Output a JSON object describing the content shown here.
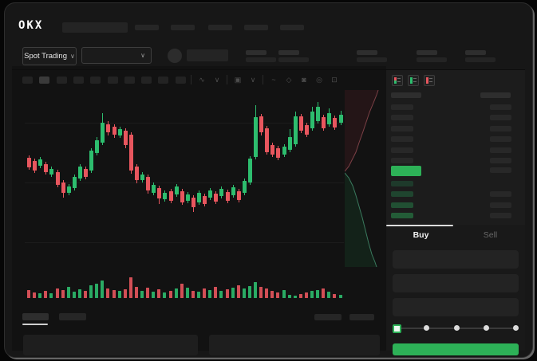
{
  "topbar": {
    "logo": "OKX",
    "logo_placeholder": {
      "x": 72,
      "w": 82
    },
    "nav_placeholders": [
      163,
      208,
      255,
      300,
      345
    ]
  },
  "subheader": {
    "market_selector_label": "Spot Trading",
    "chevron": "∨",
    "stat_groups": [
      302,
      343,
      441,
      516,
      577
    ]
  },
  "toolbar": {
    "timeframe_placeholder_count": 10,
    "active_timeframe_index": 1,
    "icons": [
      {
        "type": "sep"
      },
      {
        "type": "icon",
        "name": "indicator-zigzag-icon",
        "glyph": "∿"
      },
      {
        "type": "icon",
        "name": "chevron-down-icon",
        "glyph": "∨"
      },
      {
        "type": "sep"
      },
      {
        "type": "icon",
        "name": "layout-icon",
        "glyph": "▣"
      },
      {
        "type": "icon",
        "name": "chevron-down-icon",
        "glyph": "∨"
      },
      {
        "type": "sep"
      },
      {
        "type": "icon",
        "name": "line-tool-icon",
        "glyph": "~"
      },
      {
        "type": "icon",
        "name": "tag-icon",
        "glyph": "◇"
      },
      {
        "type": "icon",
        "name": "camera-icon",
        "glyph": "◙"
      },
      {
        "type": "icon",
        "name": "settings-icon",
        "glyph": "◎"
      },
      {
        "type": "icon",
        "name": "fullscreen-icon",
        "glyph": "⊡"
      }
    ]
  },
  "colors": {
    "up": "#2dbd6e",
    "down": "#e8565e",
    "accent_green": "#2db157",
    "ask_depth_line": "#7c4046",
    "ask_depth_fill": "#241517",
    "bid_depth_line": "#3a7a5e",
    "bid_depth_fill": "#132219"
  },
  "chart_data": {
    "type": "candlestick",
    "title": "",
    "xlabel": "",
    "ylabel": "",
    "axes_labeled": false,
    "note": "Skeleton trading chart with no visible axis labels; candle geometry in px from chart top (lower value = higher price): [bodyTop, bodyBottom, wickTop, wickBottom, direction]",
    "candles": [
      [
        86,
        98,
        83,
        101,
        "r"
      ],
      [
        90,
        102,
        87,
        105,
        "r"
      ],
      [
        88,
        96,
        85,
        99,
        "g"
      ],
      [
        94,
        104,
        91,
        107,
        "r"
      ],
      [
        100,
        107,
        97,
        110,
        "g"
      ],
      [
        104,
        120,
        101,
        123,
        "r"
      ],
      [
        117,
        130,
        114,
        136,
        "r"
      ],
      [
        122,
        130,
        119,
        133,
        "g"
      ],
      [
        110,
        124,
        107,
        127,
        "g"
      ],
      [
        97,
        112,
        94,
        115,
        "g"
      ],
      [
        100,
        110,
        97,
        113,
        "r"
      ],
      [
        77,
        102,
        74,
        105,
        "g"
      ],
      [
        64,
        80,
        60,
        83,
        "g"
      ],
      [
        42,
        67,
        30,
        70,
        "g"
      ],
      [
        44,
        54,
        40,
        58,
        "r"
      ],
      [
        47,
        57,
        44,
        61,
        "r"
      ],
      [
        50,
        58,
        47,
        61,
        "g"
      ],
      [
        52,
        70,
        49,
        74,
        "r"
      ],
      [
        57,
        102,
        54,
        106,
        "r"
      ],
      [
        97,
        114,
        94,
        118,
        "r"
      ],
      [
        107,
        114,
        104,
        117,
        "g"
      ],
      [
        110,
        127,
        107,
        131,
        "r"
      ],
      [
        120,
        130,
        117,
        133,
        "g"
      ],
      [
        124,
        137,
        121,
        144,
        "r"
      ],
      [
        130,
        138,
        127,
        141,
        "g"
      ],
      [
        128,
        140,
        125,
        143,
        "r"
      ],
      [
        122,
        132,
        119,
        135,
        "g"
      ],
      [
        128,
        142,
        125,
        145,
        "r"
      ],
      [
        132,
        140,
        129,
        143,
        "g"
      ],
      [
        136,
        148,
        133,
        154,
        "r"
      ],
      [
        130,
        142,
        127,
        145,
        "g"
      ],
      [
        134,
        144,
        131,
        147,
        "r"
      ],
      [
        127,
        136,
        124,
        139,
        "g"
      ],
      [
        131,
        141,
        128,
        144,
        "r"
      ],
      [
        125,
        134,
        122,
        137,
        "g"
      ],
      [
        129,
        140,
        126,
        143,
        "r"
      ],
      [
        123,
        133,
        120,
        136,
        "g"
      ],
      [
        128,
        139,
        125,
        142,
        "r"
      ],
      [
        115,
        130,
        112,
        133,
        "g"
      ],
      [
        87,
        117,
        84,
        120,
        "g"
      ],
      [
        35,
        85,
        20,
        88,
        "g"
      ],
      [
        34,
        54,
        31,
        58,
        "r"
      ],
      [
        49,
        79,
        46,
        82,
        "r"
      ],
      [
        70,
        82,
        67,
        85,
        "r"
      ],
      [
        74,
        86,
        71,
        89,
        "r"
      ],
      [
        72,
        82,
        69,
        85,
        "g"
      ],
      [
        60,
        76,
        50,
        79,
        "g"
      ],
      [
        34,
        69,
        28,
        72,
        "g"
      ],
      [
        34,
        52,
        31,
        55,
        "r"
      ],
      [
        45,
        57,
        42,
        60,
        "r"
      ],
      [
        28,
        49,
        22,
        52,
        "g"
      ],
      [
        22,
        40,
        16,
        43,
        "g"
      ],
      [
        35,
        49,
        32,
        52,
        "r"
      ],
      [
        30,
        44,
        24,
        47,
        "g"
      ],
      [
        36,
        48,
        33,
        51,
        "r"
      ],
      [
        32,
        42,
        27,
        45,
        "g"
      ]
    ],
    "volume_heights": [
      10,
      7,
      6,
      9,
      6,
      12,
      10,
      14,
      8,
      11,
      9,
      16,
      18,
      22,
      12,
      10,
      9,
      11,
      26,
      14,
      9,
      13,
      8,
      11,
      7,
      9,
      12,
      18,
      13,
      9,
      8,
      12,
      10,
      14,
      9,
      11,
      13,
      16,
      12,
      15,
      20,
      14,
      12,
      9,
      7,
      10,
      4,
      3,
      5,
      7,
      9,
      10,
      12,
      8,
      5,
      4
    ],
    "depth": {
      "asks_line": "42,2 40,8 36,18 31,30 27,42 23,54 18,68 14,80 9,90 5,98 0,104",
      "asks_fill": "0,2 42,2 40,8 36,18 31,30 27,42 23,54 18,68 14,80 9,90 5,98 0,104",
      "bids_line": "0,106 5,112 10,122 14,134 18,148 22,162 26,178 30,194 34,208 38,218 40,224",
      "bids_fill": "0,106 5,112 10,122 14,134 18,148 22,162 26,178 30,194 34,208 38,218 40,224 0,224"
    }
  },
  "orderbook": {
    "view_icons": [
      {
        "name": "orderbook-split-view-icon",
        "stripe": [
          "#e8565e",
          "#2dbd6e"
        ]
      },
      {
        "name": "orderbook-bids-view-icon",
        "stripe": [
          "#2dbd6e",
          "#2dbd6e"
        ]
      },
      {
        "name": "orderbook-asks-view-icon",
        "stripe": [
          "#e8565e",
          "#e8565e"
        ]
      }
    ],
    "ask_row_count": 6,
    "last_price_highlight_color": "#2db157",
    "bid_rows": [
      {
        "left_color": "#1e3a2b",
        "right_bar": false
      },
      {
        "left_color": "#1f452f",
        "right_bar": true
      },
      {
        "left_color": "#215033",
        "right_bar": true
      },
      {
        "left_color": "#235c37",
        "right_bar": true
      }
    ]
  },
  "trade_panel": {
    "tabs": [
      {
        "label": "Buy",
        "active": true
      },
      {
        "label": "Sell",
        "active": false
      }
    ],
    "field_count": 3,
    "slider": {
      "stop_count": 5,
      "active_index": 0
    }
  }
}
